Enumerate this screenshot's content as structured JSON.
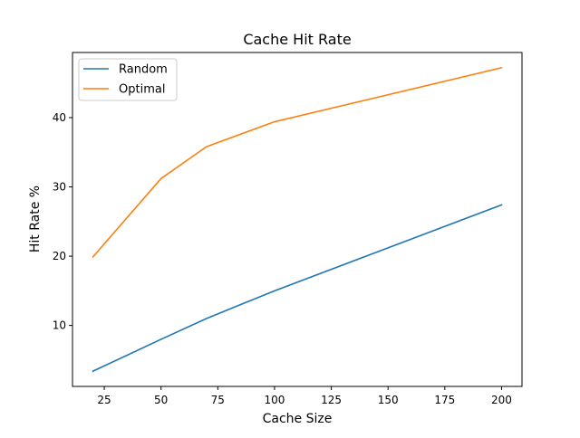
{
  "chart_data": {
    "type": "line",
    "title": "Cache Hit Rate",
    "xlabel": "Cache Size",
    "ylabel": "Hit Rate %",
    "xlim": [
      11,
      209
    ],
    "ylim": [
      1.2,
      49.4
    ],
    "xticks": [
      25,
      50,
      75,
      100,
      125,
      150,
      175,
      200
    ],
    "xtick_labels": [
      "25",
      "50",
      "75",
      "100",
      "125",
      "150",
      "175",
      "200"
    ],
    "yticks": [
      10,
      20,
      30,
      40
    ],
    "ytick_labels": [
      "10",
      "20",
      "30",
      "40"
    ],
    "grid": false,
    "legend_position": "top-left",
    "series": [
      {
        "name": "Random",
        "color": "#1f77b4",
        "x": [
          20,
          50,
          70,
          100,
          200
        ],
        "y": [
          3.4,
          8.0,
          11.0,
          15.0,
          27.4
        ]
      },
      {
        "name": "Optimal",
        "color": "#ff7f0e",
        "x": [
          20,
          50,
          70,
          100,
          200
        ],
        "y": [
          19.9,
          31.2,
          35.8,
          39.4,
          47.2
        ]
      }
    ]
  }
}
